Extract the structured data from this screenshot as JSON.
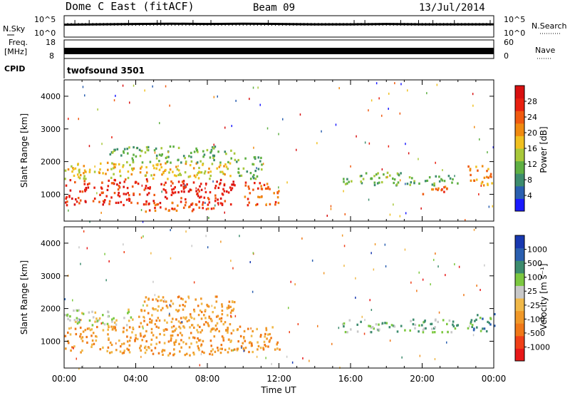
{
  "header": {
    "station": "Dome C East (fitACF)",
    "beam": "Beam 09",
    "date": "13/Jul/2014"
  },
  "side_labels": {
    "nsky": "N.Sky",
    "nsearch": "N.Search",
    "freq": "Freq.",
    "freq_unit": "[MHz]",
    "nave": "Nave",
    "cpid": "CPID"
  },
  "cpid_text": "twofsound 3501",
  "colors": {
    "power_scale": [
      "#1a1aff",
      "#2a5fb0",
      "#3d8c6e",
      "#5fb043",
      "#a8c83a",
      "#f0c020",
      "#f08a10",
      "#f05a10",
      "#e82010",
      "#d81010"
    ],
    "velocity_scale": [
      "#e81818",
      "#f04018",
      "#f07818",
      "#f09828",
      "#f0b848",
      "#c8c8c8",
      "#7cc840",
      "#3d8c6e",
      "#2a5fb0",
      "#1838b0"
    ],
    "line": "#000000"
  },
  "chart_data": [
    {
      "type": "line",
      "panel": "noise",
      "ylabel_left": "N.Sky",
      "ylabel_right": "N.Search",
      "left_ticks": [
        "10^5",
        "10^0"
      ],
      "right_ticks": [
        "10^5",
        "10^0"
      ],
      "x": [
        0,
        2,
        4,
        6,
        8,
        10,
        12,
        14,
        16,
        18,
        20,
        22,
        24
      ],
      "series": [
        {
          "values": [
            3.0,
            3.1,
            3.2,
            3.3,
            3.2,
            3.3,
            3.2,
            3.1,
            3.1,
            3.2,
            3.1,
            3.1,
            3.1
          ]
        }
      ]
    },
    {
      "type": "line",
      "panel": "frequency",
      "ylabel_left": "Freq. [MHz]",
      "ylabel_right": "Nave",
      "left_ticks": [
        "18",
        "8"
      ],
      "right_ticks": [
        "60",
        "0"
      ],
      "x": [
        0,
        24
      ],
      "series": [
        {
          "values": [
            10.5,
            10.5
          ]
        }
      ]
    },
    {
      "type": "heatmap",
      "panel": "power",
      "ylabel": "Slant Range [km]",
      "yticks": [
        "1000",
        "2000",
        "3000",
        "4000"
      ],
      "ylim": [
        180,
        4500
      ],
      "xlim": [
        0,
        24
      ],
      "colorbar_label": "Power [dB]",
      "colorbar_ticks": [
        "4",
        "8",
        "12",
        "16",
        "20",
        "24",
        "28"
      ],
      "colorbar_range": [
        0,
        32
      ],
      "regions": [
        {
          "t0": 0.0,
          "t1": 9.5,
          "r0": 700,
          "r1": 1500,
          "value": 28
        },
        {
          "t0": 0.0,
          "t1": 9.5,
          "r0": 1500,
          "r1": 2000,
          "value": 16
        },
        {
          "t0": 2.5,
          "t1": 9.5,
          "r0": 2000,
          "r1": 2500,
          "value": 12
        },
        {
          "t0": 4.5,
          "t1": 8.5,
          "r0": 500,
          "r1": 800,
          "value": 26
        },
        {
          "t0": 9.5,
          "t1": 11.0,
          "r0": 1500,
          "r1": 2200,
          "value": 12
        },
        {
          "t0": 10.0,
          "t1": 12.0,
          "r0": 700,
          "r1": 1400,
          "value": 26
        },
        {
          "t0": 15.5,
          "t1": 19.0,
          "r0": 1300,
          "r1": 1700,
          "value": 12
        },
        {
          "t0": 19.0,
          "t1": 22.0,
          "r0": 1300,
          "r1": 1600,
          "value": 10
        },
        {
          "t0": 20.0,
          "t1": 21.5,
          "r0": 1000,
          "r1": 1300,
          "value": 24
        },
        {
          "t0": 22.5,
          "t1": 24.0,
          "r0": 1300,
          "r1": 1900,
          "value": 20
        }
      ]
    },
    {
      "type": "heatmap",
      "panel": "velocity",
      "ylabel": "Slant Range [km]",
      "yticks": [
        "1000",
        "2000",
        "3000",
        "4000"
      ],
      "ylim": [
        180,
        4500
      ],
      "xlim": [
        0,
        24
      ],
      "xlabel": "Time UT",
      "xticks": [
        "00:00",
        "04:00",
        "08:00",
        "12:00",
        "16:00",
        "20:00",
        "00:00"
      ],
      "colorbar_label": "Velocity [m s⁻¹]",
      "colorbar_ticks": [
        "1000",
        "500",
        "100",
        "25",
        "-25",
        "-100",
        "-500",
        "-1000"
      ],
      "regions": [
        {
          "t0": 0.0,
          "t1": 9.5,
          "r0": 600,
          "r1": 1500,
          "value": -300
        },
        {
          "t0": 0.0,
          "t1": 4.0,
          "r0": 1500,
          "r1": 2000,
          "value": 20
        },
        {
          "t0": 4.0,
          "t1": 9.5,
          "r0": 1500,
          "r1": 2400,
          "value": -200
        },
        {
          "t0": 9.5,
          "t1": 12.0,
          "r0": 700,
          "r1": 1500,
          "value": -300
        },
        {
          "t0": 15.5,
          "t1": 22.0,
          "r0": 1300,
          "r1": 1700,
          "value": 50
        },
        {
          "t0": 22.5,
          "t1": 24.0,
          "r0": 1300,
          "r1": 1900,
          "value": 200
        }
      ]
    }
  ]
}
